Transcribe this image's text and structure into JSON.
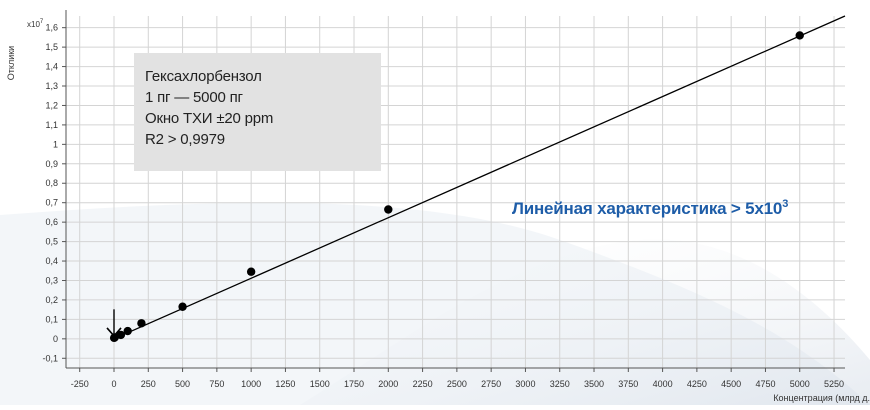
{
  "chart_data": {
    "type": "scatter",
    "title": "",
    "xlabel": "Концентрация (млрд д.",
    "ylabel": "Отклики",
    "y_multiplier_label": "x10",
    "y_multiplier_exp": "7",
    "xlim": [
      -350,
      5330
    ],
    "ylim": [
      -0.15,
      1.66
    ],
    "x_ticks": [
      -250,
      0,
      250,
      500,
      750,
      1000,
      1250,
      1500,
      1750,
      2000,
      2250,
      2500,
      2750,
      3000,
      3250,
      3500,
      3750,
      4000,
      4250,
      4500,
      4750,
      5000,
      5250
    ],
    "x_tick_labels": [
      "-250",
      "0",
      "250",
      "500",
      "750",
      "1000",
      "1250",
      "1500",
      "1750",
      "2000",
      "2250",
      "2500",
      "2750",
      "3000",
      "3250",
      "3500",
      "3750",
      "4000",
      "4250",
      "4500",
      "4750",
      "5000",
      "5250"
    ],
    "y_ticks": [
      -0.1,
      0,
      0.1,
      0.2,
      0.3,
      0.4,
      0.5,
      0.6,
      0.7,
      0.8,
      0.9,
      1,
      1.1,
      1.2,
      1.3,
      1.4,
      1.5,
      1.6
    ],
    "y_tick_labels": [
      "-0,1",
      "0",
      "0,1",
      "0,2",
      "0,3",
      "0,4",
      "0,5",
      "0,6",
      "0,7",
      "0,8",
      "0,9",
      "1",
      "1,1",
      "1,2",
      "1,3",
      "1,4",
      "1,5",
      "1,6"
    ],
    "points": [
      {
        "x": 1,
        "y": 0.005
      },
      {
        "x": 5,
        "y": 0.007
      },
      {
        "x": 50,
        "y": 0.02
      },
      {
        "x": 100,
        "y": 0.04
      },
      {
        "x": 200,
        "y": 0.08
      },
      {
        "x": 500,
        "y": 0.165
      },
      {
        "x": 1000,
        "y": 0.345
      },
      {
        "x": 2000,
        "y": 0.665
      },
      {
        "x": 5000,
        "y": 1.56
      }
    ],
    "fit_line": {
      "x": [
        0,
        5330
      ],
      "y": [
        0.0,
        1.66
      ]
    },
    "marker_arrow_at": {
      "x": 0,
      "y": 0.09
    },
    "grid": true,
    "colors": {
      "grid": "#d4d4d4",
      "points": "#000000",
      "line": "#000000",
      "axis": "#555555",
      "accent": "#1e5da8",
      "box": "#e2e2e2"
    }
  },
  "info_box": {
    "lines": [
      "Гексахлорбензол",
      "1 пг — 5000 пг",
      "Окно ТХИ ±20 ppm",
      "R2 > 0,9979"
    ]
  },
  "linearity": {
    "text": "Линейная характеристика > 5x10",
    "exponent": "3"
  }
}
